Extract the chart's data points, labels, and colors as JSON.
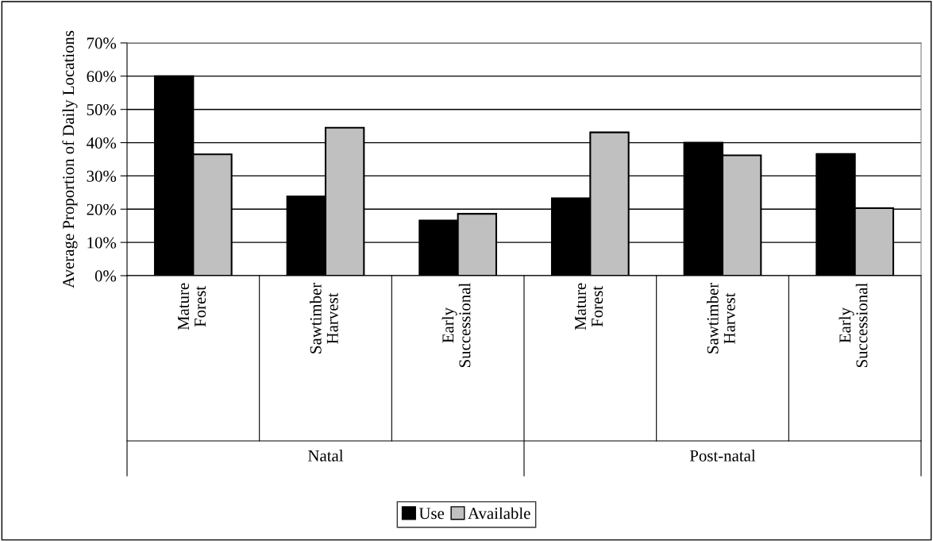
{
  "chart_data": {
    "type": "bar",
    "ylabel": "Average Proportion of Daily Locations",
    "categories": [
      "Mature Forest",
      "Sawtimber Harvest",
      "Early Successional",
      "Mature Forest",
      "Sawtimber Harvest",
      "Early Successional"
    ],
    "series": [
      {
        "name": "Use",
        "color": "#000000",
        "values": [
          60,
          23.8,
          16.6,
          23.3,
          40,
          36.6
        ]
      },
      {
        "name": "Available",
        "color": "#c0c0c0",
        "values": [
          36.5,
          44.5,
          18.6,
          43.1,
          36.2,
          20.3
        ]
      }
    ],
    "annotations": [
      "Natal",
      "Post-natal"
    ],
    "ylim": [
      0,
      70
    ],
    "yticks": [
      {
        "value": 0,
        "label": "0%"
      },
      {
        "value": 10,
        "label": "10%"
      },
      {
        "value": 20,
        "label": "20%"
      },
      {
        "value": 30,
        "label": "30%"
      },
      {
        "value": 40,
        "label": "40%"
      },
      {
        "value": 50,
        "label": "50%"
      },
      {
        "value": 60,
        "label": "60%"
      },
      {
        "value": 70,
        "label": "70%"
      }
    ],
    "grid": "y",
    "legend": "bottom"
  }
}
